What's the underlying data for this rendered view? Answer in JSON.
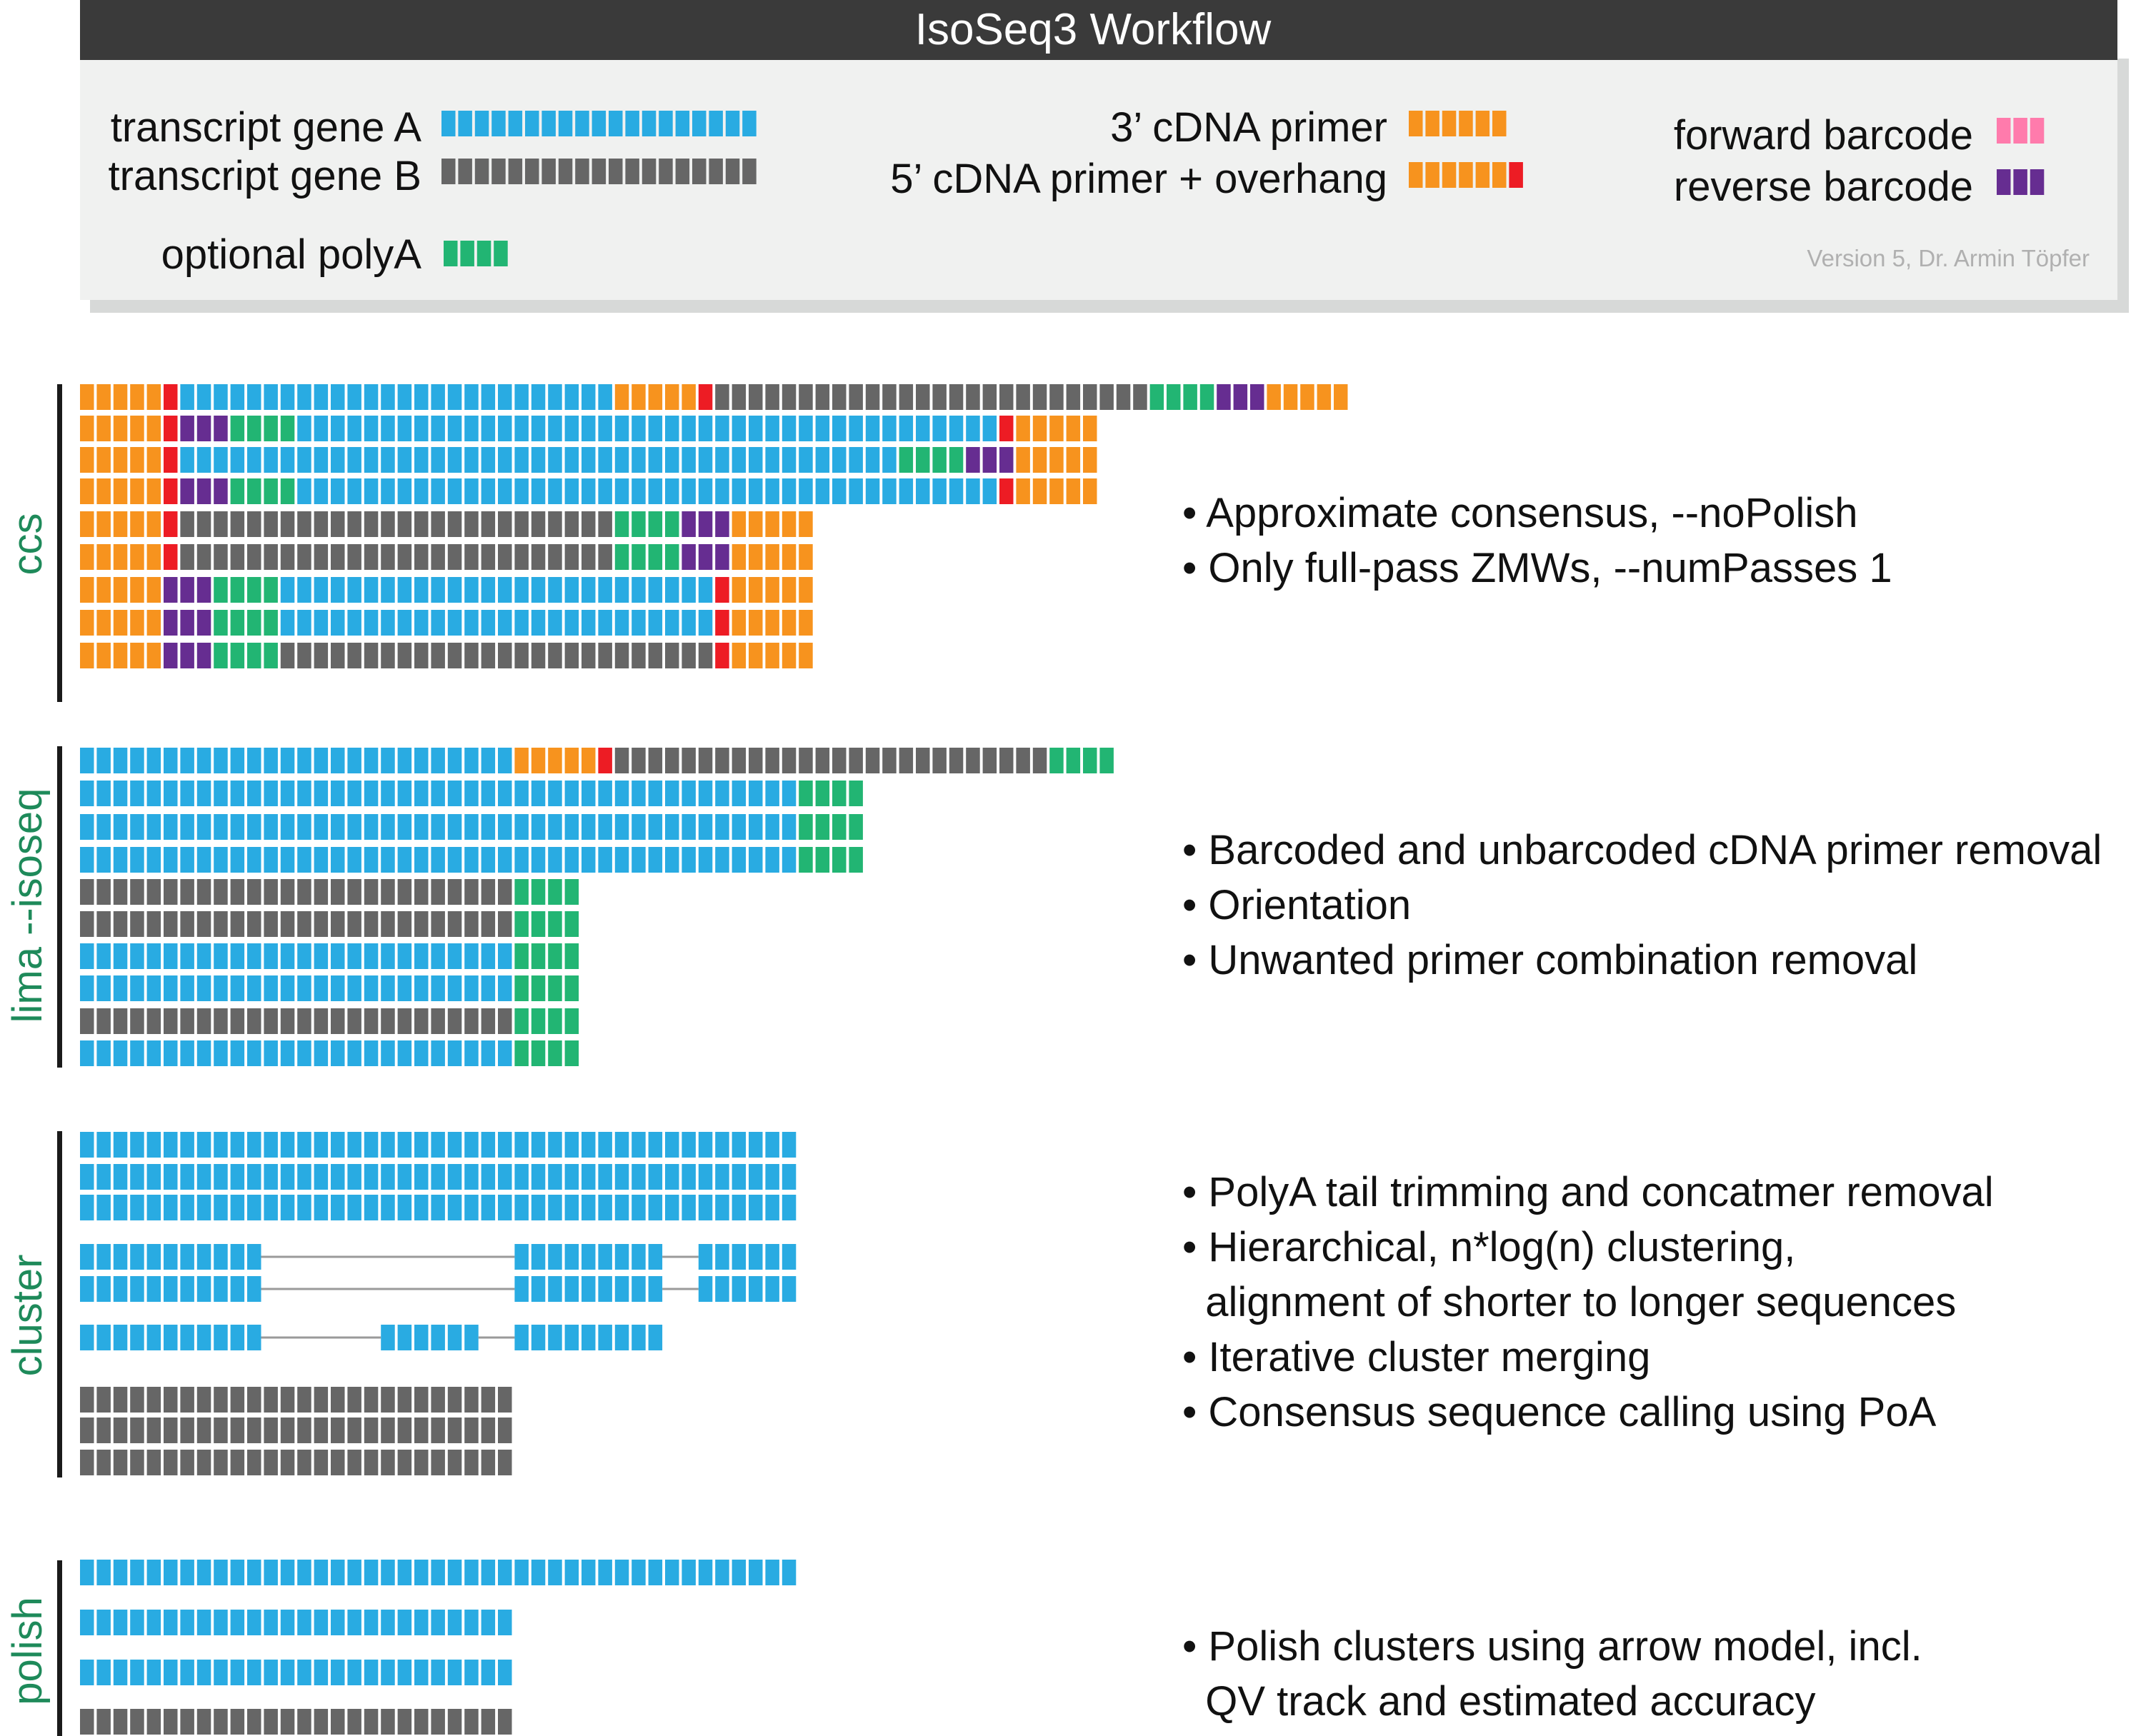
{
  "header": {
    "title": "IsoSeq3 Workflow"
  },
  "legend": {
    "transcript_a": "transcript gene A",
    "transcript_b": "transcript gene B",
    "polya": "optional polyA",
    "primer_3": "3’ cDNA primer",
    "primer_5": "5’ cDNA primer + overhang",
    "forward_barcode": "forward barcode",
    "reverse_barcode": "reverse barcode",
    "version": "Version 5, Dr. Armin Töpfer"
  },
  "colors": {
    "gene_a": "#29abe2",
    "gene_b": "#666666",
    "polya": "#22b573",
    "primer": "#f7931e",
    "overhang": "#ed1c24",
    "forward_barcode": "#ff7bac",
    "reverse_barcode": "#662d91",
    "stage_label": "#1e8a5a",
    "header_bg": "#3a3a3a",
    "legend_bg": "#f0f1f0"
  },
  "sequence_codes": {
    "A": "transcript gene A",
    "B": "transcript gene B",
    "P": "optional polyA",
    "O": "3’ cDNA primer",
    "R": "5’ cDNA primer overhang",
    "F": "forward barcode",
    "V": "reverse barcode",
    "-": "intron / gap"
  },
  "legend_blocks": {
    "transcript_a": "A19",
    "transcript_b": "B19",
    "polya": "P4",
    "primer_3": "O6",
    "primer_5": "O6 R1",
    "forward_barcode": "F3",
    "reverse_barcode": "V3"
  },
  "stages": [
    {
      "label": "ccs",
      "bullets": [
        "• Approximate consensus, --noPolish",
        "• Only full-pass ZMWs, --numPasses 1"
      ],
      "rows": [
        "O5 R1 A26 O5 R1 B26 P4 V3 O5",
        "O5 R1 V3 P4 A42 R1 O5",
        "O5 R1 A43 P4 V3 O5",
        "O5 R1 V3 P4 A42 R1 O5",
        "O5 R1 B26 P4 V3 O5",
        "O5 R1 B26 P4 V3 O5",
        "O5 V3 P4 A26 R1 O5",
        "O5 V3 P4 A26 R1 O5",
        "O5 V3 P4 B26 R1 O5"
      ]
    },
    {
      "label": "lima --isoseq",
      "bullets": [
        "• Barcoded and unbarcoded cDNA primer removal",
        "• Orientation",
        "• Unwanted primer combination removal"
      ],
      "rows": [
        "A26 O5 R1 B26 P4",
        "A43 P4",
        "A43 P4",
        "A43 P4",
        "B26 P4",
        "B26 P4",
        "A26 P4",
        "A26 P4",
        "B26 P4",
        "A26 P4"
      ]
    },
    {
      "label": "cluster",
      "bullets": [
        "• PolyA tail trimming and concatmer removal",
        "• Hierarchical, n*log(n) clustering,",
        "  alignment of shorter to longer sequences",
        "• Iterative cluster merging",
        "• Consensus sequence calling using PoA"
      ],
      "rows": [
        "A43",
        "A43",
        "A43",
        "A11 -15 A9 -2 A6",
        "A11 -15 A9 -2 A6",
        "A11 -7 A6 -2 A9",
        "B26",
        "B26",
        "B26"
      ]
    },
    {
      "label": "polish",
      "bullets": [
        "• Polish clusters using arrow model, incl.",
        "  QV track and estimated accuracy"
      ],
      "rows": [
        "A43",
        "A26",
        "A26",
        "B26"
      ]
    }
  ]
}
